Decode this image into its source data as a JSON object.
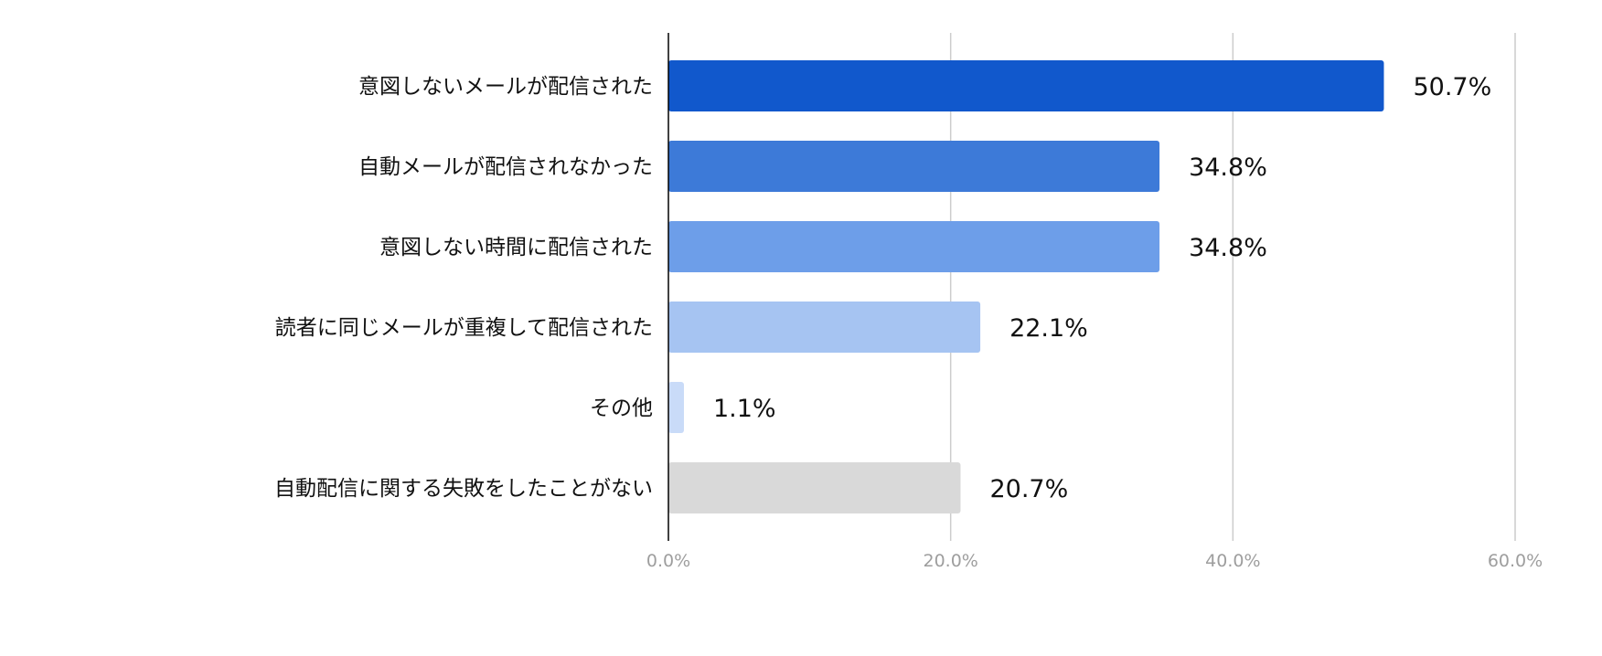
{
  "chart_data": {
    "type": "bar",
    "orientation": "horizontal",
    "categories": [
      "意図しないメールが配信された",
      "自動メールが配信されなかった",
      "意図しない時間に配信された",
      "読者に同じメールが重複して配信された",
      "その他",
      "自動配信に関する失敗をしたことがない"
    ],
    "values": [
      50.7,
      34.8,
      34.8,
      22.1,
      1.1,
      20.7
    ],
    "value_labels": [
      "50.7%",
      "34.8%",
      "34.8%",
      "22.1%",
      "1.1%",
      "20.7%"
    ],
    "colors": [
      "#1158cc",
      "#3d7ad8",
      "#6d9ee9",
      "#a6c4f2",
      "#c9dbf8",
      "#d9d9d9"
    ],
    "x_ticks": [
      0,
      20,
      40,
      60
    ],
    "x_tick_labels": [
      "0.0%",
      "20.0%",
      "40.0%",
      "60.0%"
    ],
    "xlim": [
      0,
      60
    ],
    "grid": true,
    "legend": "none",
    "title": "",
    "xlabel": "",
    "ylabel": ""
  }
}
